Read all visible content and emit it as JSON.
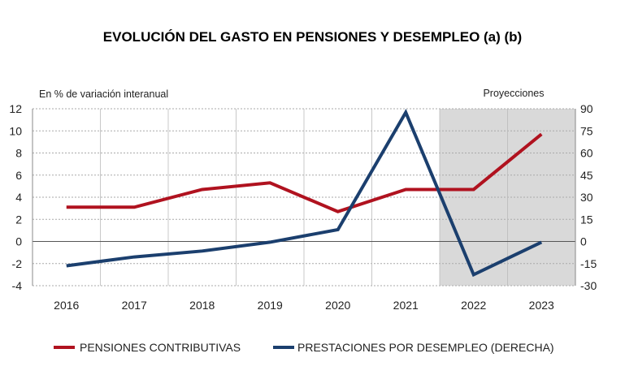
{
  "chart_data": {
    "type": "line",
    "title": "EVOLUCIÓN DEL GASTO EN PENSIONES Y DESEMPLEO (a) (b)",
    "ylabel": "En % de variación interanual",
    "annotation": "Proyecciones",
    "projection_categories": [
      "2022",
      "2023"
    ],
    "categories": [
      "2016",
      "2017",
      "2018",
      "2019",
      "2020",
      "2021",
      "2022",
      "2023"
    ],
    "ylim": [
      -4,
      12
    ],
    "yticks": [
      12,
      10,
      8,
      6,
      4,
      2,
      0,
      -2,
      -4
    ],
    "y2lim": [
      -30,
      90
    ],
    "y2ticks": [
      90,
      75,
      60,
      45,
      30,
      15,
      0,
      -15,
      -30
    ],
    "grid": true,
    "legend_position": "bottom",
    "series": [
      {
        "name": "PENSIONES CONTRIBUTIVAS",
        "axis": "left",
        "color": "#B0121F",
        "values": [
          3.1,
          3.1,
          4.7,
          5.3,
          2.7,
          4.7,
          4.7,
          9.7
        ]
      },
      {
        "name": "PRESTACIONES POR DESEMPLEO (DERECHA)",
        "axis": "right",
        "color": "#1B3F6E",
        "values": [
          -16.5,
          -10.5,
          -6.5,
          -0.5,
          8,
          87.5,
          -22.5,
          -0.5
        ]
      }
    ],
    "shade_color": "#D9D9D9"
  }
}
